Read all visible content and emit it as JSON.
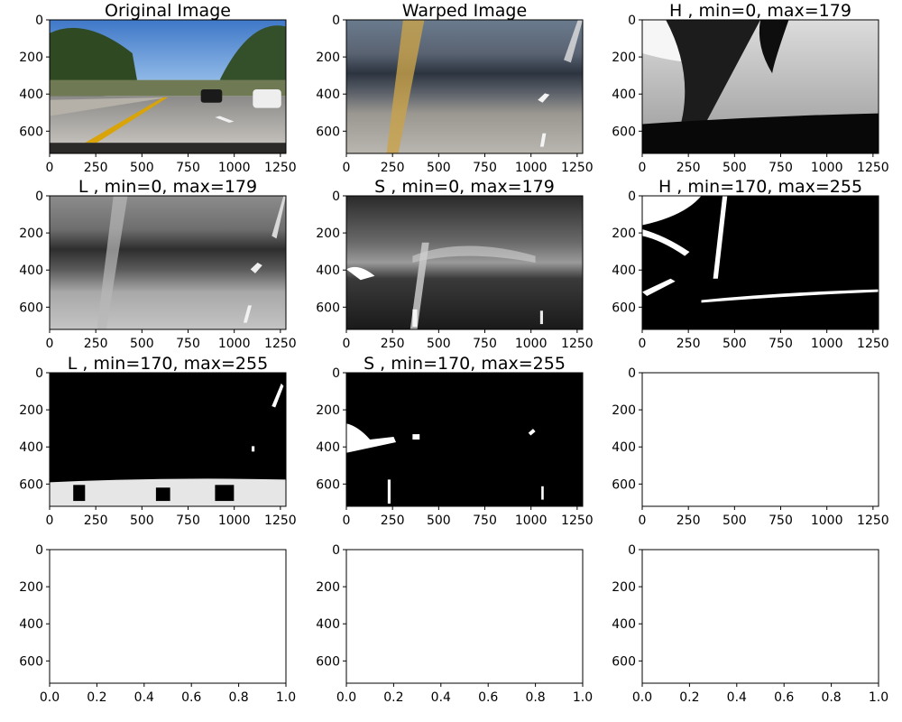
{
  "figure": {
    "title_color": "#000000",
    "axes_color": "#000000",
    "background": "#ffffff"
  },
  "chart_data": [
    {
      "type": "image",
      "title": "Original Image",
      "image": "road-scene-photo",
      "xticks": [
        "0",
        "250",
        "500",
        "750",
        "1000",
        "1250"
      ],
      "yticks": [
        "0",
        "200",
        "400",
        "600"
      ],
      "xlim": [
        0,
        1280
      ],
      "ylim": [
        720,
        0
      ]
    },
    {
      "type": "image",
      "title": "Warped Image",
      "image": "warped-road-photo",
      "xticks": [
        "0",
        "250",
        "500",
        "750",
        "1000",
        "1250"
      ],
      "yticks": [
        "0",
        "200",
        "400",
        "600"
      ],
      "xlim": [
        0,
        1280
      ],
      "ylim": [
        720,
        0
      ]
    },
    {
      "type": "image",
      "title": "H , min=0, max=179",
      "image": "hue-channel-grayscale",
      "xticks": [
        "0",
        "250",
        "500",
        "750",
        "1000",
        "1250"
      ],
      "yticks": [
        "0",
        "200",
        "400",
        "600"
      ],
      "xlim": [
        0,
        1280
      ],
      "ylim": [
        720,
        0
      ]
    },
    {
      "type": "image",
      "title": "L , min=0, max=179",
      "image": "lightness-channel-grayscale",
      "xticks": [
        "0",
        "250",
        "500",
        "750",
        "1000",
        "1250"
      ],
      "yticks": [
        "0",
        "200",
        "400",
        "600"
      ],
      "xlim": [
        0,
        1280
      ],
      "ylim": [
        720,
        0
      ]
    },
    {
      "type": "image",
      "title": "S , min=0, max=179",
      "image": "saturation-channel-grayscale",
      "xticks": [
        "0",
        "250",
        "500",
        "750",
        "1000",
        "1250"
      ],
      "yticks": [
        "0",
        "200",
        "400",
        "600"
      ],
      "xlim": [
        0,
        1280
      ],
      "ylim": [
        720,
        0
      ]
    },
    {
      "type": "image",
      "title": "H , min=170, max=255",
      "image": "hue-threshold-binary",
      "xticks": [
        "0",
        "250",
        "500",
        "750",
        "1000",
        "1250"
      ],
      "yticks": [
        "0",
        "200",
        "400",
        "600"
      ],
      "xlim": [
        0,
        1280
      ],
      "ylim": [
        720,
        0
      ]
    },
    {
      "type": "image",
      "title": "L , min=170, max=255",
      "image": "lightness-threshold-binary",
      "xticks": [
        "0",
        "250",
        "500",
        "750",
        "1000",
        "1250"
      ],
      "yticks": [
        "0",
        "200",
        "400",
        "600"
      ],
      "xlim": [
        0,
        1280
      ],
      "ylim": [
        720,
        0
      ]
    },
    {
      "type": "image",
      "title": "S , min=170, max=255",
      "image": "saturation-threshold-binary",
      "xticks": [
        "0",
        "250",
        "500",
        "750",
        "1000",
        "1250"
      ],
      "yticks": [
        "0",
        "200",
        "400",
        "600"
      ],
      "xlim": [
        0,
        1280
      ],
      "ylim": [
        720,
        0
      ]
    },
    {
      "type": "image",
      "title": "",
      "image": "blank",
      "xticks": [
        "0",
        "250",
        "500",
        "750",
        "1000",
        "1250"
      ],
      "yticks": [
        "0",
        "200",
        "400",
        "600"
      ],
      "xlim": [
        0,
        1280
      ],
      "ylim": [
        720,
        0
      ]
    },
    {
      "type": "image",
      "title": "",
      "image": "blank",
      "xticks": [
        "0.0",
        "0.2",
        "0.4",
        "0.6",
        "0.8",
        "1.0"
      ],
      "yticks": [
        "0",
        "200",
        "400",
        "600"
      ],
      "xlim": [
        0,
        1
      ],
      "ylim": [
        720,
        0
      ]
    },
    {
      "type": "image",
      "title": "",
      "image": "blank",
      "xticks": [
        "0.0",
        "0.2",
        "0.4",
        "0.6",
        "0.8",
        "1.0"
      ],
      "yticks": [
        "0",
        "200",
        "400",
        "600"
      ],
      "xlim": [
        0,
        1
      ],
      "ylim": [
        720,
        0
      ]
    },
    {
      "type": "image",
      "title": "",
      "image": "blank",
      "xticks": [
        "0.0",
        "0.2",
        "0.4",
        "0.6",
        "0.8",
        "1.0"
      ],
      "yticks": [
        "0",
        "200",
        "400",
        "600"
      ],
      "xlim": [
        0,
        1
      ],
      "ylim": [
        720,
        0
      ]
    }
  ]
}
